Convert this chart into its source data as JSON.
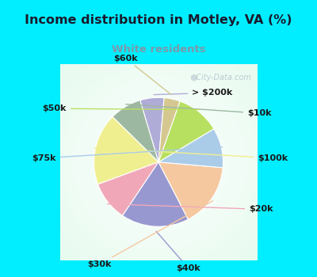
{
  "title": "Income distribution in Motley, VA (%)",
  "subtitle": "White residents",
  "title_color": "#1a1a2e",
  "subtitle_color": "#7a9aaa",
  "background_color": "#00eeff",
  "chart_bg_top": "#e8f5ee",
  "chart_bg_bottom": "#d0ede0",
  "labels": [
    "> $200k",
    "$10k",
    "$100k",
    "$20k",
    "$40k",
    "$30k",
    "$75k",
    "$50k",
    "$60k"
  ],
  "sizes": [
    6,
    8,
    18,
    10,
    17,
    16,
    10,
    11,
    4
  ],
  "colors": [
    "#b0acd8",
    "#9db8a0",
    "#f0ef90",
    "#f0a8b8",
    "#9898d0",
    "#f5c8a0",
    "#aacce8",
    "#b8e060",
    "#d4c890"
  ],
  "startangle": 85,
  "label_fontsize": 8,
  "watermark": "City-Data.com"
}
